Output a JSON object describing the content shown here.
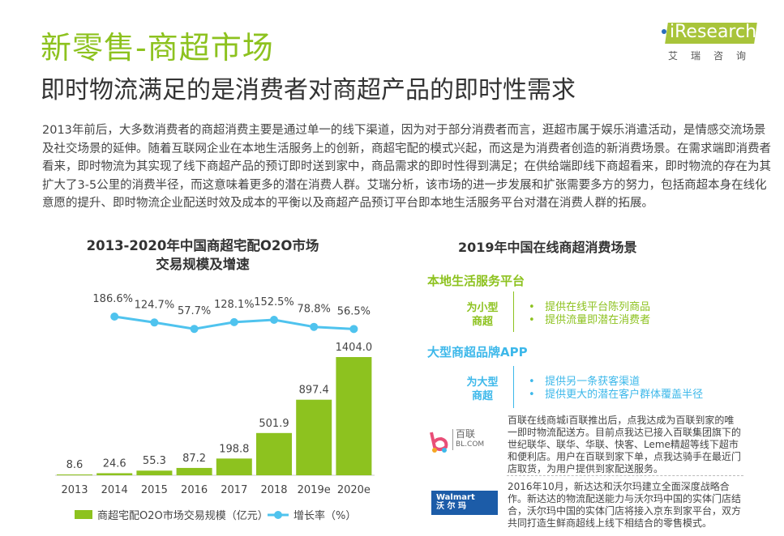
{
  "header": {
    "title": "新零售-商超市场",
    "subtitle": "即时物流满足的是消费者对商超产品的即时性需求",
    "logo_text": "iResearch",
    "logo_cn": "艾瑞咨询"
  },
  "body_text": "2013年前后，大多数消费者的商超消费主要是通过单一的线下渠道，因为对于部分消费者而言，逛超市属于娱乐消遣活动，是情感交流场景及社交场景的延伸。随着互联网企业在本地生活服务上的创新，商超宅配的模式兴起，而这是为消费者创造的新消费场景。在需求端即消费者看来，即时物流为其实现了线下商超产品的预订即时送到家中，商品需求的即时性得到满足；在供给端即线下商超看来，即时物流的存在为其扩大了3-5公里的消费半径，而这意味着更多的潜在消费人群。艾瑞分析，该市场的进一步发展和扩张需要多方的努力，包括商超本身在线化意愿的提升、即时物流企业配送时效及成本的平衡以及商超产品预订平台即本地生活服务平台对潜在消费人群的拓展。",
  "chart_data": {
    "type": "bar",
    "title": "2013-2020年中国商超宅配O2O市场",
    "title_line2": "交易规模及增速",
    "categories": [
      "2013",
      "2014",
      "2015",
      "2016",
      "2017",
      "2018",
      "2019e",
      "2020e"
    ],
    "series": [
      {
        "name": "商超宅配O2O市场交易规模（亿元）",
        "type": "bar",
        "values": [
          8.6,
          24.6,
          55.3,
          87.2,
          198.8,
          501.9,
          897.4,
          1404.0
        ],
        "labels": [
          "8.6",
          "24.6",
          "55.3",
          "87.2",
          "198.8",
          "501.9",
          "897.4",
          "1404.0"
        ],
        "color": "#8dc21f"
      },
      {
        "name": "增长率（%）",
        "type": "line",
        "values": [
          null,
          186.6,
          124.7,
          57.7,
          128.1,
          152.5,
          78.8,
          56.5
        ],
        "labels": [
          "",
          "186.6%",
          "124.7%",
          "57.7%",
          "128.1%",
          "152.5%",
          "78.8%",
          "56.5%"
        ],
        "color": "#4fc3ee"
      }
    ],
    "legend": "bottom"
  },
  "right": {
    "title": "2019年中国在线商超消费场景",
    "sections": [
      {
        "heading": "本地生活服务平台",
        "tag_line1": "为小型",
        "tag_line2": "商超",
        "bullets": [
          "提供在线平台陈列商品",
          "提供流量即潜在消费者"
        ],
        "color": "#8dc21f"
      },
      {
        "heading": "大型商超品牌APP",
        "tag_line1": "为大型",
        "tag_line2": "商超",
        "bullets": [
          "提供另一条获客渠道",
          "提供更大的潜在客户群体覆盖半径"
        ],
        "color": "#3db8ea"
      }
    ],
    "cases": [
      {
        "logo_line1": "百联",
        "logo_line2": "BL.COM",
        "text": "百联在线商城i百联推出后，点我达成为百联到家的唯一即时物流配送方。目前点我达已接入百联集团旗下的世纪联华、联华、华联、快客、Leme精超等线下超市和便利店。用户在百联到家下单，点我达骑手在最近门店取货，为用户提供到家配送服务。"
      },
      {
        "logo_line1": "Walmart",
        "logo_line2": "沃 尔 玛",
        "text": "2016年10月，新达达和沃尔玛建立全面深度战略合作。新达达的物流配送能力与沃尔玛中国的实体门店结合，沃尔玛中国的实体门店将接入京东到家平台，双方共同打造生鲜商超线上线下相结合的零售模式。"
      }
    ]
  }
}
